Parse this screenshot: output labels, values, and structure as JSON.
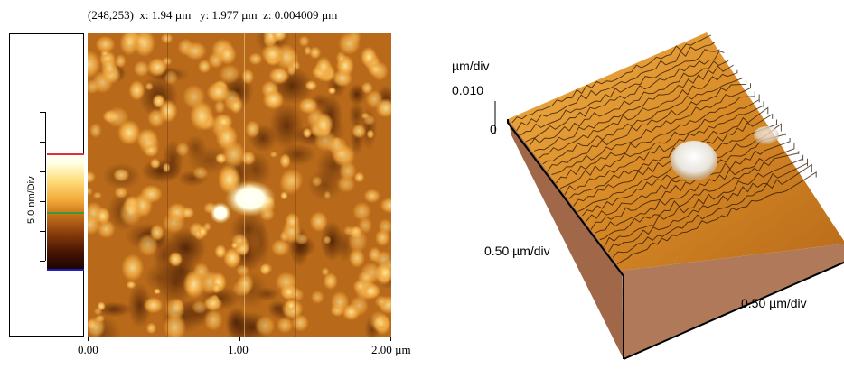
{
  "readout": "(248,253)  x: 1.94 µm   y: 1.977 µm  z: 0.004009 µm",
  "scale_panel": {
    "label": "5.0 nm/Div"
  },
  "x_axis": {
    "ticks": [
      "0.00",
      "1.00",
      "2.00 µm"
    ]
  },
  "view3d": {
    "z_unit": "µm/div",
    "z_max": "0.010",
    "z_zero": "0",
    "x_scale": "0.50 µm/div",
    "y_scale": "0.50 µm/div"
  },
  "colors": {
    "afm_dark": "#5a2a06",
    "afm_mid": "#c87a22",
    "afm_light": "#f6c060",
    "afm_bright": "#ffffff",
    "marker_red": "#e03030",
    "marker_green": "#3a9a3a",
    "marker_blue": "#2020c0",
    "base": "#b07a5a"
  }
}
